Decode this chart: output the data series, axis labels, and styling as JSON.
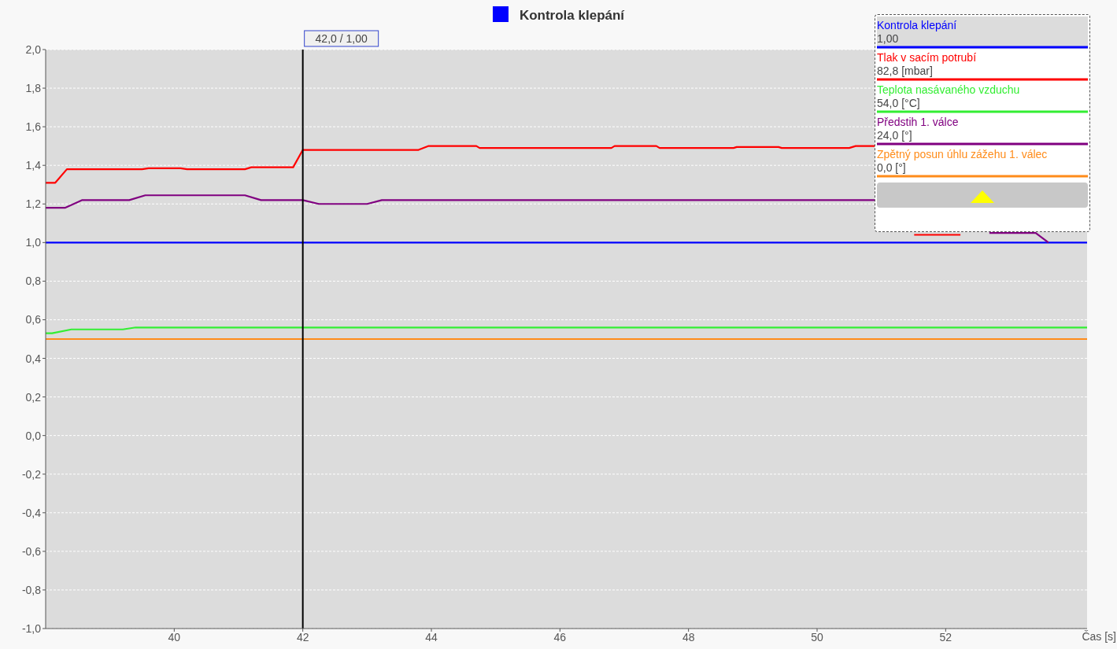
{
  "chart_data": {
    "type": "line",
    "title": "Kontrola klepání",
    "xlabel": "Čas [s]",
    "xlim": [
      38,
      54.2
    ],
    "xticks": [
      40,
      42,
      44,
      46,
      48,
      50,
      52
    ],
    "ylim": [
      -1,
      2
    ],
    "yticks": [
      {
        "value": -1,
        "label": "-1,0"
      },
      {
        "value": -0.8,
        "label": "-0,8"
      },
      {
        "value": -0.6,
        "label": "-0,6"
      },
      {
        "value": -0.4,
        "label": "-0,4"
      },
      {
        "value": -0.2,
        "label": "-0,2"
      },
      {
        "value": 0,
        "label": "0,0"
      },
      {
        "value": 0.2,
        "label": "0,2"
      },
      {
        "value": 0.4,
        "label": "0,4"
      },
      {
        "value": 0.6,
        "label": "0,6"
      },
      {
        "value": 0.8,
        "label": "0,8"
      },
      {
        "value": 1,
        "label": "1,0"
      },
      {
        "value": 1.2,
        "label": "1,2"
      },
      {
        "value": 1.4,
        "label": "1,4"
      },
      {
        "value": 1.6,
        "label": "1,6"
      },
      {
        "value": 1.8,
        "label": "1,8"
      },
      {
        "value": 2,
        "label": "2,0"
      }
    ],
    "grid": "y",
    "legend": "top right",
    "marker": "none",
    "line_style": "solid",
    "series": [
      {
        "name": "Kontrola klepání",
        "color": "#0000ff",
        "x": [
          38,
          54.2
        ],
        "values": [
          1,
          1
        ]
      },
      {
        "name": "Tlak v sacím potrubí",
        "color": "#ff0000",
        "x": [
          38,
          38.15,
          38.33,
          39.5,
          39.6,
          40.1,
          40.2,
          41.1,
          41.2,
          41.85,
          42.0,
          43.8,
          43.95,
          44.7,
          44.75,
          46.8,
          46.85,
          47.5,
          47.55,
          48.7,
          48.75,
          49.4,
          49.45,
          50.5,
          50.6,
          50.9,
          51.2,
          51.51,
          52.23
        ],
        "values": [
          1.31,
          1.31,
          1.38,
          1.38,
          1.385,
          1.385,
          1.38,
          1.38,
          1.39,
          1.39,
          1.48,
          1.48,
          1.5,
          1.5,
          1.49,
          1.49,
          1.5,
          1.5,
          1.49,
          1.49,
          1.495,
          1.495,
          1.49,
          1.49,
          1.5,
          1.5,
          null,
          1.04,
          1.04
        ]
      },
      {
        "name": "Teplota nasávaného vzduchu",
        "color": "#33ee33",
        "x": [
          38,
          38.1,
          38.4,
          39.2,
          39.4,
          54.2
        ],
        "values": [
          0.53,
          0.53,
          0.55,
          0.55,
          0.56,
          0.56
        ]
      },
      {
        "name": "Předstih 1. válce",
        "color": "#800080",
        "x": [
          38,
          38.3,
          38.57,
          39.3,
          39.55,
          41.1,
          41.35,
          42.0,
          42.25,
          43.0,
          43.23,
          50.9,
          51.8,
          52.68,
          53.4,
          53.6
        ],
        "values": [
          1.18,
          1.18,
          1.22,
          1.22,
          1.245,
          1.245,
          1.22,
          1.22,
          1.2,
          1.2,
          1.22,
          1.22,
          null,
          1.05,
          1.05,
          1.0
        ]
      },
      {
        "name": "Zpětný posun úhlu zážehu 1. válec",
        "color": "#ff8c1a",
        "x": [
          38,
          54.2
        ],
        "values": [
          0.5,
          0.5
        ]
      }
    ],
    "ref_lines": [
      {
        "axis": "x",
        "value": 42,
        "label": "42,0 / 1,00",
        "color": "#000000"
      }
    ],
    "annotations": [
      "1,00",
      "82,8 [mbar]",
      "54,0 [°C]",
      "24,0 [°]",
      "0,0 [°]"
    ]
  }
}
